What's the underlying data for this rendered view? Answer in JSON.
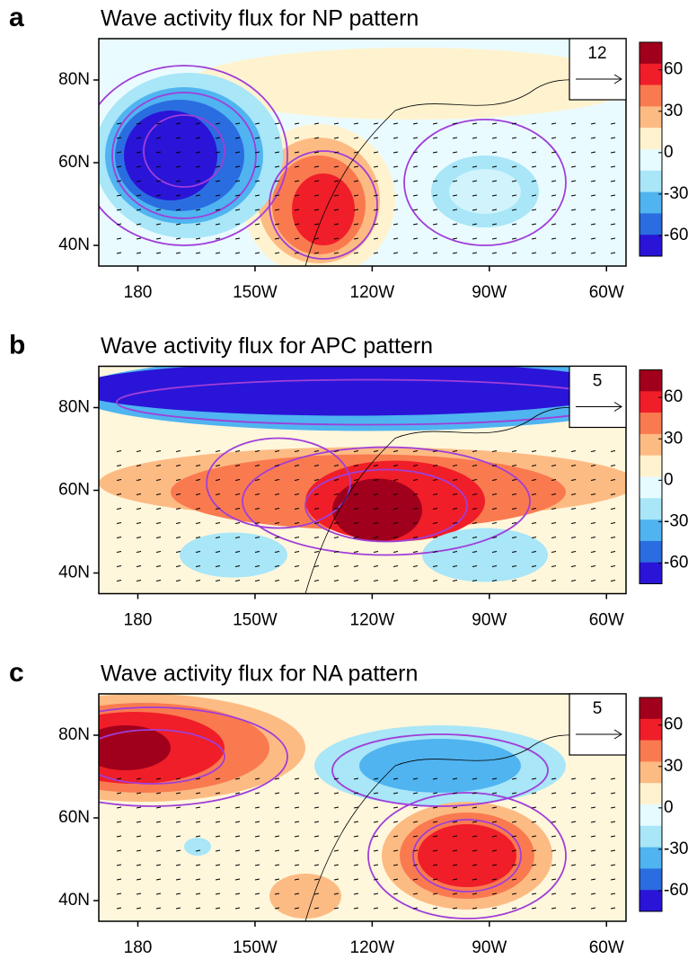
{
  "panels": [
    {
      "letter": "a",
      "title": "Wave activity flux for NP pattern",
      "lat_lim": [
        35,
        90
      ],
      "lon_lim": [
        -190,
        -55
      ],
      "lat_ticks": [
        {
          "value": 40,
          "label": "40N"
        },
        {
          "value": 60,
          "label": "60N"
        },
        {
          "value": 80,
          "label": "80N"
        }
      ],
      "lon_ticks": [
        {
          "value": -180,
          "label": "180"
        },
        {
          "value": -150,
          "label": "150W"
        },
        {
          "value": -120,
          "label": "120W"
        },
        {
          "value": -90,
          "label": "90W"
        },
        {
          "value": -60,
          "label": "60W"
        }
      ],
      "colorbar": {
        "lim": [
          -75,
          80
        ],
        "ticks": [
          60,
          30,
          0,
          -30,
          -60
        ],
        "colors": [
          "#a0001c",
          "#f01e28",
          "#fa7a50",
          "#fdbb84",
          "#fff3cf",
          "#e6fbff",
          "#a8e6f8",
          "#4fb4f0",
          "#2a6de0",
          "#2a14d8"
        ]
      },
      "reference_vector": 12
    },
    {
      "letter": "b",
      "title": "Wave activity flux for APC pattern",
      "lat_lim": [
        35,
        90
      ],
      "lon_lim": [
        -190,
        -55
      ],
      "lat_ticks": [
        {
          "value": 40,
          "label": "40N"
        },
        {
          "value": 60,
          "label": "60N"
        },
        {
          "value": 80,
          "label": "80N"
        }
      ],
      "lon_ticks": [
        {
          "value": -180,
          "label": "180"
        },
        {
          "value": -150,
          "label": "150W"
        },
        {
          "value": -120,
          "label": "120W"
        },
        {
          "value": -90,
          "label": "90W"
        },
        {
          "value": -60,
          "label": "60W"
        }
      ],
      "colorbar": {
        "lim": [
          -75,
          80
        ],
        "ticks": [
          60,
          30,
          0,
          -30,
          -60
        ],
        "colors": [
          "#a0001c",
          "#f01e28",
          "#fa7a50",
          "#fdbb84",
          "#fff3cf",
          "#e6fbff",
          "#a8e6f8",
          "#4fb4f0",
          "#2a6de0",
          "#2a14d8"
        ]
      },
      "reference_vector": 5
    },
    {
      "letter": "c",
      "title": "Wave activity flux for NA pattern",
      "lat_lim": [
        35,
        90
      ],
      "lon_lim": [
        -190,
        -55
      ],
      "lat_ticks": [
        {
          "value": 40,
          "label": "40N"
        },
        {
          "value": 60,
          "label": "60N"
        },
        {
          "value": 80,
          "label": "80N"
        }
      ],
      "lon_ticks": [
        {
          "value": -180,
          "label": "180"
        },
        {
          "value": -150,
          "label": "150W"
        },
        {
          "value": -120,
          "label": "120W"
        },
        {
          "value": -90,
          "label": "90W"
        },
        {
          "value": -60,
          "label": "60W"
        }
      ],
      "colorbar": {
        "lim": [
          -75,
          80
        ],
        "ticks": [
          60,
          30,
          0,
          -30,
          -60
        ],
        "colors": [
          "#a0001c",
          "#f01e28",
          "#fa7a50",
          "#fdbb84",
          "#fff3cf",
          "#e6fbff",
          "#a8e6f8",
          "#4fb4f0",
          "#2a6de0",
          "#2a14d8"
        ]
      },
      "reference_vector": 5
    }
  ]
}
